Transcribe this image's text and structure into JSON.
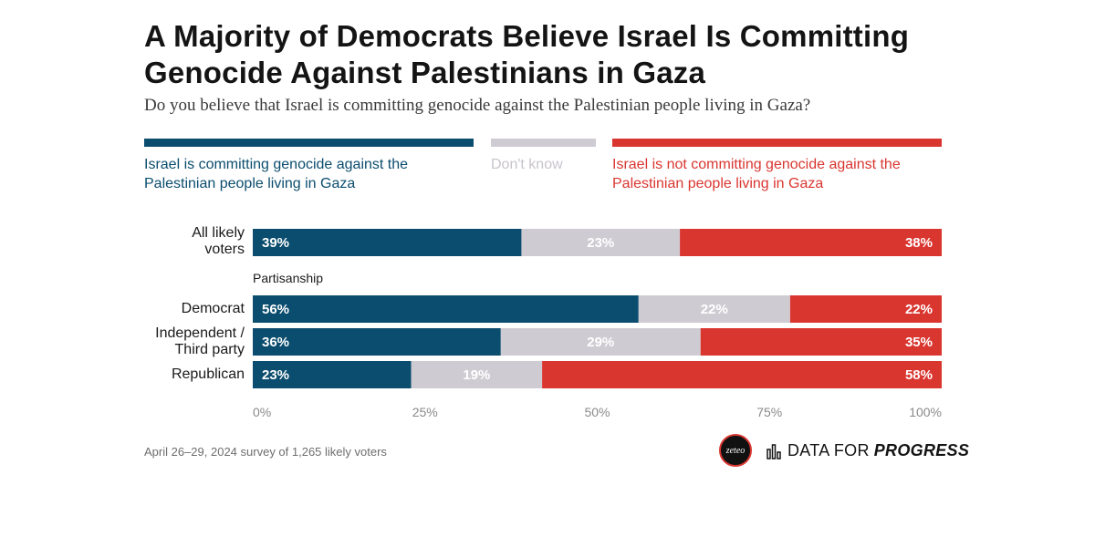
{
  "header": {
    "title": "A Majority of Democrats Believe Israel Is Committing Genocide Against Palestinians in Gaza",
    "subtitle": "Do you believe that Israel is committing genocide against the Palestinian people living in Gaza?"
  },
  "legend": {
    "yes": "Israel is committing genocide against the Palestinian people living in Gaza",
    "dont_know": "Don't know",
    "no": "Israel is not committing genocide against the Palestinian people living in Gaza"
  },
  "colors": {
    "yes": "#0b4d6e",
    "dont_know": "#cfcbd3",
    "no": "#d93630"
  },
  "chart_data": {
    "type": "bar",
    "orientation": "horizontal-stacked",
    "title": "A Majority of Democrats Believe Israel Is Committing Genocide Against Palestinians in Gaza",
    "categories": [
      "All likely voters",
      "Democrat",
      "Independent / Third party",
      "Republican"
    ],
    "group_label": "Partisanship",
    "series": [
      {
        "name": "Israel is committing genocide against the Palestinian people living in Gaza",
        "values": [
          39,
          56,
          36,
          23
        ]
      },
      {
        "name": "Don't know",
        "values": [
          23,
          22,
          29,
          19
        ]
      },
      {
        "name": "Israel is not committing genocide against the Palestinian people living in Gaza",
        "values": [
          38,
          22,
          35,
          58
        ]
      }
    ],
    "value_labels": [
      [
        "39%",
        "23%",
        "38%"
      ],
      [
        "56%",
        "22%",
        "22%"
      ],
      [
        "36%",
        "29%",
        "35%"
      ],
      [
        "23%",
        "19%",
        "58%"
      ]
    ],
    "xlim": [
      0,
      100
    ],
    "x_ticks": [
      "0%",
      "25%",
      "50%",
      "75%",
      "100%"
    ],
    "legend_position": "top"
  },
  "rows": {
    "all": "All likely voters",
    "dem": "Democrat",
    "ind_line1": "Independent /",
    "ind_line2": "Third party",
    "rep": "Republican"
  },
  "footer": {
    "note": "April 26–29, 2024 survey of 1,265 likely voters",
    "zeteo": "zeteo",
    "dfp_regular": "DATA FOR",
    "dfp_bold": "PROGRESS"
  }
}
